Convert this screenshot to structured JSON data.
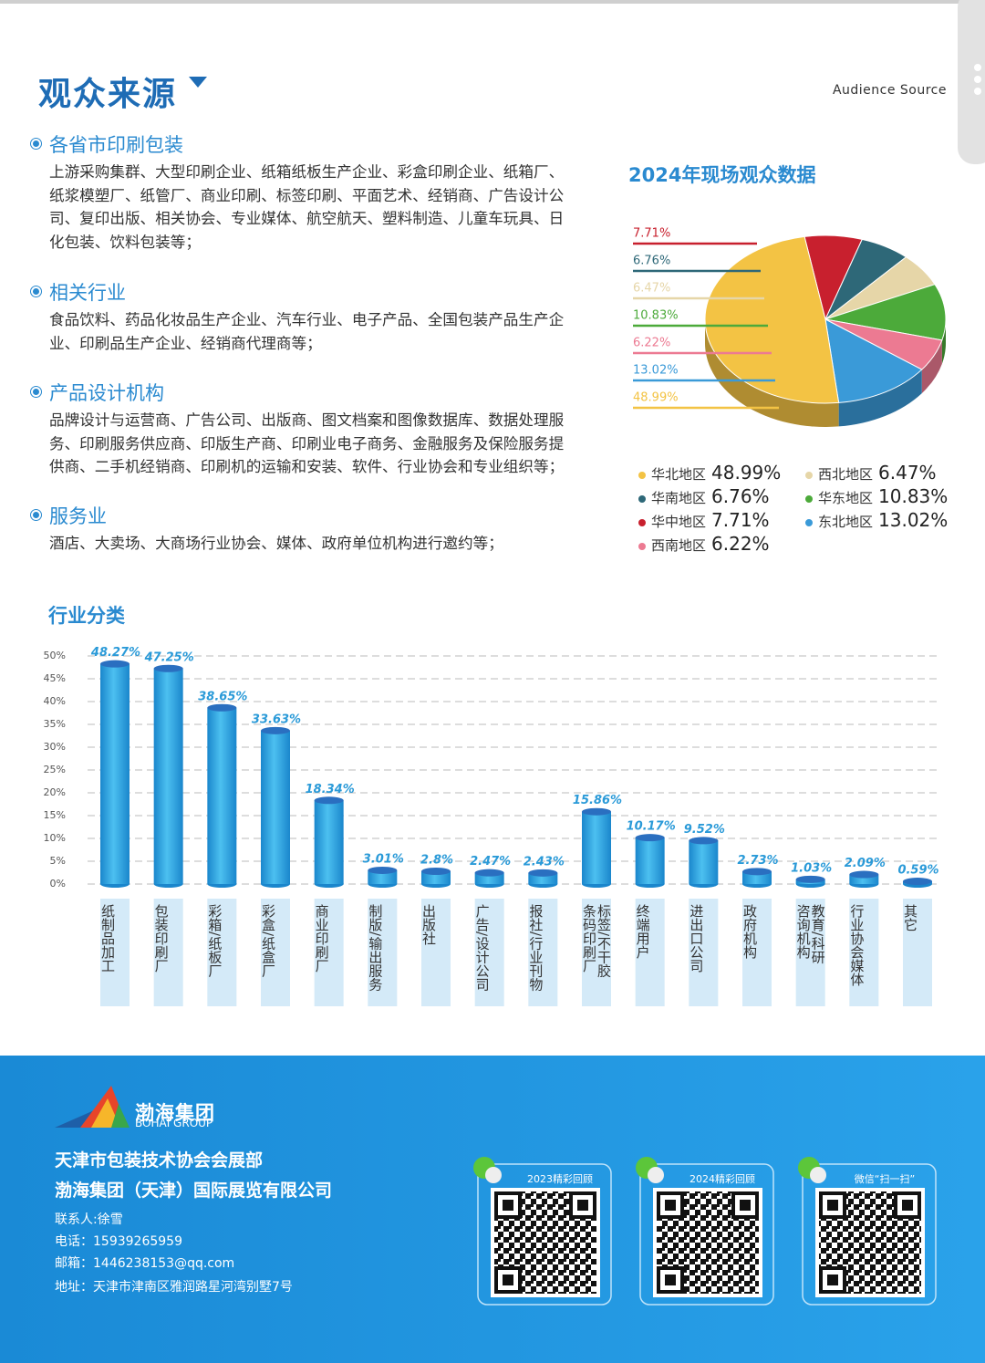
{
  "header": {
    "title": "观众来源",
    "subtitle": "Audience Source"
  },
  "sections": [
    {
      "title": "各省市印刷包装",
      "body": "上游采购集群、大型印刷企业、纸箱纸板生产企业、彩盒印刷企业、纸箱厂、纸浆模塑厂、纸管厂、商业印刷、标签印刷、平面艺术、经销商、广告设计公司、复印出版、相关协会、专业媒体、航空航天、塑料制造、儿童车玩具、日化包装、饮料包装等；"
    },
    {
      "title": "相关行业",
      "body": "食品饮料、药品化妆品生产企业、汽车行业、电子产品、全国包装产品生产企业、印刷品生产企业、经销商代理商等；"
    },
    {
      "title": "产品设计机构",
      "body": "品牌设计与运营商、广告公司、出版商、图文档案和图像数据库、数据处理服务、印刷服务供应商、印版生产商、印刷业电子商务、金融服务及保险服务提供商、二手机经销商、印刷机的运输和安装、软件、行业协会和专业组织等；"
    },
    {
      "title": "服务业",
      "body": "酒店、大卖场、大商场行业协会、媒体、政府单位机构进行邀约等；"
    }
  ],
  "chart_data": [
    {
      "type": "pie",
      "title": "2024年现场观众数据",
      "categories": [
        "华中地区",
        "华南地区",
        "西北地区",
        "华东地区",
        "西南地区",
        "东北地区",
        "华北地区"
      ],
      "values": [
        7.71,
        6.76,
        6.47,
        10.83,
        6.22,
        13.02,
        48.99
      ],
      "value_labels": [
        "7.71%",
        "6.76%",
        "6.47%",
        "10.83%",
        "6.22%",
        "13.02%",
        "48.99%"
      ],
      "colors": [
        "#c8202e",
        "#2e6878",
        "#e6d6a8",
        "#4caa3a",
        "#ec7a92",
        "#3a9ad8",
        "#f3c344"
      ]
    },
    {
      "type": "bar",
      "title": "行业分类",
      "categories": [
        "纸制品加工",
        "包装印刷厂",
        "彩箱/纸板厂",
        "彩盒/纸盒厂",
        "商业印刷厂",
        "制版/输出服务",
        "出版社",
        "广告/设计公司",
        "报社/行业刊物",
        "条码印刷厂\n标签/不干胶",
        "终端用户",
        "进出口公司",
        "政府机构",
        "咨询机构\n教育/科研",
        "行业协会媒体",
        "其它"
      ],
      "values": [
        48.27,
        47.25,
        38.65,
        33.63,
        18.34,
        3.01,
        2.8,
        2.47,
        2.43,
        15.86,
        10.17,
        9.52,
        2.73,
        1.03,
        2.09,
        0.59
      ],
      "value_labels": [
        "48.27%",
        "47.25%",
        "38.65%",
        "33.63%",
        "18.34%",
        "3.01%",
        "2.8%",
        "2.47%",
        "2.43%",
        "15.86%",
        "10.17%",
        "9.52%",
        "2.73%",
        "1.03%",
        "2.09%",
        "0.59%"
      ],
      "color": "#2aa3e0",
      "ylim": [
        0,
        50
      ],
      "yticks": [
        {
          "value": 0,
          "label": "0%"
        },
        {
          "value": 5,
          "label": "5%"
        },
        {
          "value": 10,
          "label": "10%"
        },
        {
          "value": 15,
          "label": "15%"
        },
        {
          "value": 20,
          "label": "20%"
        },
        {
          "value": 25,
          "label": "25%"
        },
        {
          "value": 30,
          "label": "30%"
        },
        {
          "value": 35,
          "label": "35%"
        },
        {
          "value": 40,
          "label": "40%"
        },
        {
          "value": 45,
          "label": "45%"
        },
        {
          "value": 50,
          "label": "50%"
        }
      ],
      "grid": true
    }
  ],
  "footer": {
    "logo_name": "渤海集团",
    "logo_english": "BOHAI GROUP",
    "organizers": [
      "天津市包装技术协会会展部",
      "渤海集团（天津）国际展览有限公司"
    ],
    "contacts": [
      "联系人:徐雪",
      "电话：15939265959",
      "邮箱：1446238153@qq.com",
      "地址：天津市津南区雅润路星河湾别墅7号"
    ],
    "qr_captions": [
      "2023精彩回顾",
      "2024精彩回顾",
      "微信“扫一扫”"
    ]
  }
}
